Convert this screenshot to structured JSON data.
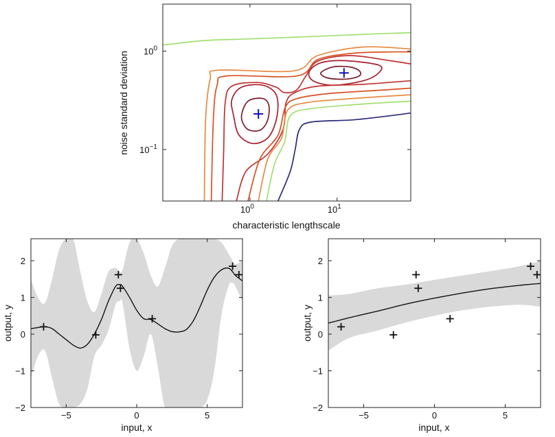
{
  "chart_data": [
    {
      "type": "contour",
      "xlabel": "characteristic lengthscale",
      "ylabel": "noise standard deviation",
      "xscale": "log",
      "yscale": "log",
      "xlim": [
        0.1,
        70
      ],
      "ylim": [
        0.03,
        3
      ],
      "xticks": [
        {
          "value": 1,
          "base": "10",
          "exp": "0"
        },
        {
          "value": 10,
          "base": "10",
          "exp": "1"
        }
      ],
      "yticks": [
        {
          "value": 0.1,
          "base": "10",
          "exp": "−1"
        },
        {
          "value": 1,
          "base": "10",
          "exp": "0"
        }
      ],
      "optima": [
        {
          "x": 1.25,
          "y": 0.23
        },
        {
          "x": 12,
          "y": 0.6
        }
      ],
      "marker_color": "#1010c0",
      "contours": [
        {
          "level": 1,
          "color": "#7a1a2a",
          "closed": true,
          "points": [
            [
              0.88,
              0.17
            ],
            [
              0.8,
              0.22
            ],
            [
              0.95,
              0.31
            ],
            [
              1.4,
              0.33
            ],
            [
              1.65,
              0.28
            ],
            [
              1.6,
              0.2
            ],
            [
              1.35,
              0.16
            ],
            [
              1.05,
              0.155
            ]
          ]
        },
        {
          "level": 1,
          "color": "#7a1a2a",
          "closed": true,
          "points": [
            [
              6.5,
              0.6
            ],
            [
              9,
              0.69
            ],
            [
              14,
              0.69
            ],
            [
              18,
              0.63
            ],
            [
              18,
              0.56
            ],
            [
              13,
              0.52
            ],
            [
              8,
              0.53
            ]
          ]
        },
        {
          "level": 2,
          "color": "#a51e2e",
          "closed": true,
          "points": [
            [
              0.65,
              0.22
            ],
            [
              0.62,
              0.32
            ],
            [
              0.8,
              0.43
            ],
            [
              1.4,
              0.45
            ],
            [
              2,
              0.36
            ],
            [
              2.05,
              0.22
            ],
            [
              1.65,
              0.135
            ],
            [
              1.1,
              0.115
            ],
            [
              0.75,
              0.14
            ]
          ]
        },
        {
          "level": 2,
          "color": "#a51e2e",
          "closed": true,
          "points": [
            [
              4.8,
              0.62
            ],
            [
              6.5,
              0.76
            ],
            [
              12,
              0.8
            ],
            [
              30,
              0.72
            ],
            [
              30,
              0.6
            ],
            [
              20,
              0.5
            ],
            [
              9,
              0.45
            ],
            [
              5.3,
              0.5
            ]
          ]
        },
        {
          "level": 3,
          "color": "#c03030",
          "closed": false,
          "points": [
            [
              0.48,
              0.03
            ],
            [
              0.5,
              0.1
            ],
            [
              0.52,
              0.3
            ],
            [
              0.62,
              0.44
            ],
            [
              1.2,
              0.48
            ],
            [
              2,
              0.43
            ],
            [
              2.45,
              0.38
            ],
            [
              3.4,
              0.4
            ],
            [
              4.4,
              0.56
            ],
            [
              6,
              0.79
            ],
            [
              14,
              0.9
            ],
            [
              40,
              0.8
            ],
            [
              70,
              0.74
            ]
          ]
        },
        {
          "level": 3,
          "color": "#c03030",
          "closed": false,
          "points": [
            [
              0.7,
              0.03
            ],
            [
              0.9,
              0.06
            ],
            [
              1.6,
              0.09
            ],
            [
              2.4,
              0.16
            ],
            [
              2.6,
              0.3
            ],
            [
              3.3,
              0.38
            ],
            [
              6,
              0.44
            ],
            [
              20,
              0.46
            ],
            [
              70,
              0.5
            ]
          ]
        },
        {
          "level": 4,
          "color": "#d85020",
          "closed": false,
          "points": [
            [
              0.36,
              0.03
            ],
            [
              0.38,
              0.2
            ],
            [
              0.42,
              0.45
            ],
            [
              0.55,
              0.56
            ],
            [
              3.5,
              0.56
            ],
            [
              6,
              0.82
            ],
            [
              15,
              0.95
            ],
            [
              40,
              0.98
            ],
            [
              70,
              0.98
            ]
          ]
        },
        {
          "level": 4,
          "color": "#d85020",
          "closed": false,
          "points": [
            [
              0.95,
              0.03
            ],
            [
              1.3,
              0.08
            ],
            [
              2.1,
              0.14
            ],
            [
              2.55,
              0.27
            ],
            [
              3.5,
              0.33
            ],
            [
              8,
              0.37
            ],
            [
              30,
              0.4
            ],
            [
              70,
              0.42
            ]
          ]
        },
        {
          "level": 5,
          "color": "#e88840",
          "closed": false,
          "points": [
            [
              0.3,
              0.03
            ],
            [
              0.31,
              0.2
            ],
            [
              0.35,
              0.52
            ],
            [
              0.43,
              0.64
            ],
            [
              3.2,
              0.63
            ],
            [
              6,
              0.9
            ],
            [
              20,
              1.1
            ],
            [
              70,
              1.05
            ]
          ]
        },
        {
          "level": 5,
          "color": "#e88840",
          "closed": false,
          "points": [
            [
              1.25,
              0.03
            ],
            [
              1.6,
              0.08
            ],
            [
              2.3,
              0.13
            ],
            [
              2.7,
              0.25
            ],
            [
              4.5,
              0.3
            ],
            [
              15,
              0.33
            ],
            [
              70,
              0.36
            ]
          ]
        },
        {
          "level": 6,
          "color": "#9fe070",
          "closed": false,
          "points": [
            [
              1.55,
              0.03
            ],
            [
              1.9,
              0.07
            ],
            [
              2.5,
              0.12
            ],
            [
              2.9,
              0.22
            ],
            [
              5,
              0.26
            ],
            [
              20,
              0.29
            ],
            [
              70,
              0.31
            ]
          ]
        },
        {
          "level": 6,
          "color": "#9fe070",
          "closed": false,
          "points": [
            [
              0.1,
              1.15
            ],
            [
              0.3,
              1.28
            ],
            [
              1,
              1.33
            ],
            [
              3,
              1.38
            ],
            [
              10,
              1.44
            ],
            [
              30,
              1.5
            ],
            [
              70,
              1.54
            ]
          ]
        },
        {
          "level": 7,
          "color": "#2a2a78",
          "closed": false,
          "points": [
            [
              2.1,
              0.03
            ],
            [
              2.9,
              0.06
            ],
            [
              3.3,
              0.1
            ],
            [
              3.7,
              0.16
            ],
            [
              5,
              0.19
            ],
            [
              15,
              0.2
            ],
            [
              40,
              0.22
            ],
            [
              70,
              0.235
            ]
          ]
        }
      ]
    },
    {
      "type": "line",
      "xlabel": "input, x",
      "ylabel": "output, y",
      "xlim": [
        -7.5,
        7.5
      ],
      "ylim": [
        -2,
        2.6
      ],
      "xticks": [
        -5,
        0,
        5
      ],
      "yticks": [
        -2,
        -1,
        0,
        1,
        2
      ],
      "band_color": "#d9d9d9",
      "x": [
        -7.5,
        -7,
        -6.5,
        -6,
        -5.5,
        -5,
        -4.5,
        -4,
        -3.5,
        -3,
        -2.5,
        -2,
        -1.5,
        -1.2,
        -1,
        -0.5,
        0,
        0.5,
        1,
        1.5,
        2,
        2.5,
        3,
        3.5,
        4,
        4.5,
        5,
        5.5,
        6,
        6.5,
        6.8,
        7,
        7.5
      ],
      "mean": [
        0.15,
        0.18,
        0.2,
        0.15,
        0.0,
        -0.15,
        -0.3,
        -0.38,
        -0.28,
        0.0,
        0.4,
        0.9,
        1.3,
        1.35,
        1.3,
        1.0,
        0.65,
        0.42,
        0.4,
        0.28,
        0.15,
        0.07,
        0.06,
        0.12,
        0.35,
        0.75,
        1.2,
        1.55,
        1.75,
        1.8,
        1.7,
        1.6,
        1.45
      ],
      "upper": [
        1.5,
        1.0,
        0.85,
        1.5,
        2.3,
        2.6,
        2.6,
        1.7,
        0.9,
        0.6,
        1.1,
        1.7,
        1.8,
        1.7,
        1.75,
        2.5,
        2.6,
        2.2,
        1.6,
        1.3,
        1.8,
        2.4,
        2.6,
        2.6,
        2.6,
        2.6,
        2.6,
        2.6,
        2.5,
        2.2,
        2.0,
        1.9,
        2.0
      ],
      "lower": [
        -1.2,
        -0.6,
        -0.45,
        -1.2,
        -1.9,
        -2.0,
        -2.0,
        -1.9,
        -1.5,
        -0.6,
        -0.3,
        0.1,
        0.8,
        0.9,
        0.85,
        -0.4,
        -1.0,
        -0.6,
        0.0,
        -0.9,
        -2.0,
        -2.0,
        -2.0,
        -2.0,
        -2.0,
        -2.0,
        -1.8,
        -1.0,
        0.5,
        1.3,
        1.4,
        1.3,
        0.9
      ],
      "observations": [
        [
          -6.6,
          0.2
        ],
        [
          -2.9,
          -0.02
        ],
        [
          -1.3,
          1.62
        ],
        [
          -1.15,
          1.25
        ],
        [
          1.1,
          0.42
        ],
        [
          6.8,
          1.85
        ],
        [
          7.25,
          1.62
        ]
      ]
    },
    {
      "type": "line",
      "xlabel": "input, x",
      "ylabel": "output, y",
      "xlim": [
        -7.5,
        7.5
      ],
      "ylim": [
        -2,
        2.6
      ],
      "xticks": [
        -5,
        0,
        5
      ],
      "yticks": [
        -2,
        -1,
        0,
        1,
        2
      ],
      "band_color": "#d9d9d9",
      "x": [
        -7.5,
        -6,
        -4,
        -2,
        0,
        2,
        4,
        6,
        7.5
      ],
      "mean": [
        0.3,
        0.45,
        0.63,
        0.82,
        0.98,
        1.12,
        1.24,
        1.33,
        1.38
      ],
      "upper": [
        1.05,
        1.1,
        1.25,
        1.35,
        1.48,
        1.6,
        1.72,
        1.85,
        2.0
      ],
      "lower": [
        -0.45,
        -0.1,
        0.1,
        0.32,
        0.5,
        0.65,
        0.75,
        0.8,
        0.75
      ],
      "observations": [
        [
          -6.6,
          0.2
        ],
        [
          -2.9,
          -0.02
        ],
        [
          -1.3,
          1.62
        ],
        [
          -1.15,
          1.25
        ],
        [
          1.1,
          0.42
        ],
        [
          6.8,
          1.85
        ],
        [
          7.25,
          1.62
        ]
      ]
    }
  ]
}
